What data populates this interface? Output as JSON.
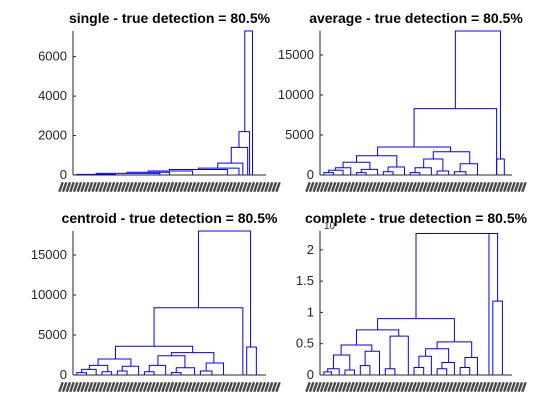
{
  "chart_data": [
    {
      "type": "dendrogram",
      "title": "single - true detection = 80.5%",
      "ylim": [
        0,
        7300
      ],
      "yticks": [
        0,
        2000,
        4000,
        6000
      ],
      "ytick_labels": [
        "0",
        "2000",
        "4000",
        "6000"
      ],
      "y_exponent": "",
      "line_color": "#0000ff",
      "merges": [
        {
          "x1": 0.02,
          "x2": 0.22,
          "y": 30,
          "h1": 0,
          "h2": 0
        },
        {
          "x1": 0.12,
          "x2": 0.45,
          "y": 80,
          "h1": 30,
          "h2": 0
        },
        {
          "x1": 0.28,
          "x2": 0.5,
          "y": 140,
          "h1": 80,
          "h2": 0
        },
        {
          "x1": 0.39,
          "x2": 0.62,
          "y": 200,
          "h1": 140,
          "h2": 0
        },
        {
          "x1": 0.5,
          "x2": 0.8,
          "y": 280,
          "h1": 200,
          "h2": 0
        },
        {
          "x1": 0.65,
          "x2": 0.86,
          "y": 350,
          "h1": 280,
          "h2": 0
        },
        {
          "x1": 0.75,
          "x2": 0.88,
          "y": 600,
          "h1": 350,
          "h2": 0
        },
        {
          "x1": 0.82,
          "x2": 0.905,
          "y": 1400,
          "h1": 600,
          "h2": 0
        },
        {
          "x1": 0.86,
          "x2": 0.915,
          "y": 2200,
          "h1": 1400,
          "h2": 0
        },
        {
          "x1": 0.89,
          "x2": 0.93,
          "y": 7300,
          "h1": 2200,
          "h2": 0
        }
      ]
    },
    {
      "type": "dendrogram",
      "title": "average - true detection = 80.5%",
      "ylim": [
        0,
        18000
      ],
      "yticks": [
        0,
        5000,
        10000,
        15000
      ],
      "ytick_labels": [
        "0",
        "5000",
        "10000",
        "15000"
      ],
      "y_exponent": "",
      "line_color": "#0000ff",
      "merges": [
        {
          "x1": 0.02,
          "x2": 0.07,
          "y": 300,
          "h1": 0,
          "h2": 0
        },
        {
          "x1": 0.045,
          "x2": 0.12,
          "y": 600,
          "h1": 300,
          "h2": 0
        },
        {
          "x1": 0.08,
          "x2": 0.16,
          "y": 900,
          "h1": 600,
          "h2": 0
        },
        {
          "x1": 0.19,
          "x2": 0.24,
          "y": 300,
          "h1": 0,
          "h2": 0
        },
        {
          "x1": 0.215,
          "x2": 0.3,
          "y": 700,
          "h1": 300,
          "h2": 0
        },
        {
          "x1": 0.12,
          "x2": 0.26,
          "y": 1600,
          "h1": 900,
          "h2": 700
        },
        {
          "x1": 0.33,
          "x2": 0.38,
          "y": 400,
          "h1": 0,
          "h2": 0
        },
        {
          "x1": 0.355,
          "x2": 0.44,
          "y": 1000,
          "h1": 400,
          "h2": 0
        },
        {
          "x1": 0.19,
          "x2": 0.4,
          "y": 2400,
          "h1": 1600,
          "h2": 1000
        },
        {
          "x1": 0.47,
          "x2": 0.52,
          "y": 300,
          "h1": 0,
          "h2": 0
        },
        {
          "x1": 0.495,
          "x2": 0.58,
          "y": 900,
          "h1": 300,
          "h2": 0
        },
        {
          "x1": 0.61,
          "x2": 0.67,
          "y": 500,
          "h1": 0,
          "h2": 0
        },
        {
          "x1": 0.54,
          "x2": 0.64,
          "y": 2000,
          "h1": 900,
          "h2": 500
        },
        {
          "x1": 0.7,
          "x2": 0.76,
          "y": 400,
          "h1": 0,
          "h2": 0
        },
        {
          "x1": 0.73,
          "x2": 0.82,
          "y": 1400,
          "h1": 400,
          "h2": 0
        },
        {
          "x1": 0.59,
          "x2": 0.78,
          "y": 2900,
          "h1": 2000,
          "h2": 1400
        },
        {
          "x1": 0.3,
          "x2": 0.68,
          "y": 3500,
          "h1": 2400,
          "h2": 2900
        },
        {
          "x1": 0.49,
          "x2": 0.92,
          "y": 8300,
          "h1": 3500,
          "h2": 0
        },
        {
          "x1": 0.92,
          "x2": 0.96,
          "y": 2000,
          "h1": 0,
          "h2": 0
        },
        {
          "x1": 0.705,
          "x2": 0.94,
          "y": 18000,
          "h1": 8300,
          "h2": 2000
        }
      ]
    },
    {
      "type": "dendrogram",
      "title": "centroid - true detection = 80.5%",
      "ylim": [
        0,
        18000
      ],
      "yticks": [
        0,
        5000,
        10000,
        15000
      ],
      "ytick_labels": [
        "0",
        "5000",
        "10000",
        "15000"
      ],
      "y_exponent": "",
      "line_color": "#0000ff",
      "merges": [
        {
          "x1": 0.02,
          "x2": 0.07,
          "y": 300,
          "h1": 0,
          "h2": 0
        },
        {
          "x1": 0.045,
          "x2": 0.12,
          "y": 700,
          "h1": 300,
          "h2": 0
        },
        {
          "x1": 0.15,
          "x2": 0.2,
          "y": 400,
          "h1": 0,
          "h2": 0
        },
        {
          "x1": 0.085,
          "x2": 0.18,
          "y": 1200,
          "h1": 700,
          "h2": 400
        },
        {
          "x1": 0.23,
          "x2": 0.28,
          "y": 500,
          "h1": 0,
          "h2": 0
        },
        {
          "x1": 0.255,
          "x2": 0.34,
          "y": 1100,
          "h1": 500,
          "h2": 0
        },
        {
          "x1": 0.13,
          "x2": 0.3,
          "y": 2000,
          "h1": 1200,
          "h2": 1100
        },
        {
          "x1": 0.37,
          "x2": 0.42,
          "y": 400,
          "h1": 0,
          "h2": 0
        },
        {
          "x1": 0.395,
          "x2": 0.48,
          "y": 1200,
          "h1": 400,
          "h2": 0
        },
        {
          "x1": 0.51,
          "x2": 0.56,
          "y": 300,
          "h1": 0,
          "h2": 0
        },
        {
          "x1": 0.535,
          "x2": 0.63,
          "y": 900,
          "h1": 300,
          "h2": 0
        },
        {
          "x1": 0.44,
          "x2": 0.58,
          "y": 2400,
          "h1": 1200,
          "h2": 900
        },
        {
          "x1": 0.66,
          "x2": 0.72,
          "y": 500,
          "h1": 0,
          "h2": 0
        },
        {
          "x1": 0.69,
          "x2": 0.78,
          "y": 1500,
          "h1": 500,
          "h2": 0
        },
        {
          "x1": 0.51,
          "x2": 0.73,
          "y": 2800,
          "h1": 2400,
          "h2": 1500
        },
        {
          "x1": 0.22,
          "x2": 0.62,
          "y": 3600,
          "h1": 2000,
          "h2": 2800
        },
        {
          "x1": 0.42,
          "x2": 0.88,
          "y": 8400,
          "h1": 3600,
          "h2": 0
        },
        {
          "x1": 0.9,
          "x2": 0.95,
          "y": 3500,
          "h1": 0,
          "h2": 0
        },
        {
          "x1": 0.65,
          "x2": 0.92,
          "y": 18000,
          "h1": 8400,
          "h2": 3500
        }
      ]
    },
    {
      "type": "dendrogram",
      "title": "complete - true detection = 80.5%",
      "ylim": [
        0,
        2.3
      ],
      "yticks": [
        0,
        0.5,
        1,
        1.5,
        2
      ],
      "ytick_labels": [
        "0",
        "0.5",
        "1",
        "1.5",
        "2"
      ],
      "y_exponent": "10",
      "line_color": "#0000ff",
      "merges": [
        {
          "x1": 0.02,
          "x2": 0.06,
          "y": 0.05,
          "h1": 0,
          "h2": 0
        },
        {
          "x1": 0.04,
          "x2": 0.1,
          "y": 0.1,
          "h1": 0.05,
          "h2": 0
        },
        {
          "x1": 0.13,
          "x2": 0.18,
          "y": 0.08,
          "h1": 0,
          "h2": 0
        },
        {
          "x1": 0.07,
          "x2": 0.155,
          "y": 0.32,
          "h1": 0.1,
          "h2": 0.08
        },
        {
          "x1": 0.21,
          "x2": 0.26,
          "y": 0.15,
          "h1": 0,
          "h2": 0
        },
        {
          "x1": 0.235,
          "x2": 0.31,
          "y": 0.38,
          "h1": 0.15,
          "h2": 0
        },
        {
          "x1": 0.11,
          "x2": 0.27,
          "y": 0.48,
          "h1": 0.32,
          "h2": 0.38
        },
        {
          "x1": 0.34,
          "x2": 0.39,
          "y": 0.1,
          "h1": 0,
          "h2": 0
        },
        {
          "x1": 0.365,
          "x2": 0.46,
          "y": 0.62,
          "h1": 0.1,
          "h2": 0
        },
        {
          "x1": 0.19,
          "x2": 0.41,
          "y": 0.72,
          "h1": 0.48,
          "h2": 0.62
        },
        {
          "x1": 0.49,
          "x2": 0.54,
          "y": 0.12,
          "h1": 0,
          "h2": 0
        },
        {
          "x1": 0.515,
          "x2": 0.58,
          "y": 0.3,
          "h1": 0.12,
          "h2": 0
        },
        {
          "x1": 0.61,
          "x2": 0.66,
          "y": 0.1,
          "h1": 0,
          "h2": 0
        },
        {
          "x1": 0.635,
          "x2": 0.7,
          "y": 0.2,
          "h1": 0.1,
          "h2": 0
        },
        {
          "x1": 0.55,
          "x2": 0.67,
          "y": 0.42,
          "h1": 0.3,
          "h2": 0.2
        },
        {
          "x1": 0.73,
          "x2": 0.78,
          "y": 0.12,
          "h1": 0,
          "h2": 0
        },
        {
          "x1": 0.755,
          "x2": 0.82,
          "y": 0.28,
          "h1": 0.12,
          "h2": 0
        },
        {
          "x1": 0.61,
          "x2": 0.79,
          "y": 0.53,
          "h1": 0.42,
          "h2": 0.28
        },
        {
          "x1": 0.3,
          "x2": 0.7,
          "y": 0.9,
          "h1": 0.72,
          "h2": 0.53
        },
        {
          "x1": 0.5,
          "x2": 0.88,
          "y": 2.26,
          "h1": 0.9,
          "h2": 0
        },
        {
          "x1": 0.9,
          "x2": 0.95,
          "y": 1.18,
          "h1": 0,
          "h2": 0
        },
        {
          "x1": 0.69,
          "x2": 0.925,
          "y": 2.26,
          "h1": 2.26,
          "h2": 1.18
        }
      ]
    }
  ]
}
